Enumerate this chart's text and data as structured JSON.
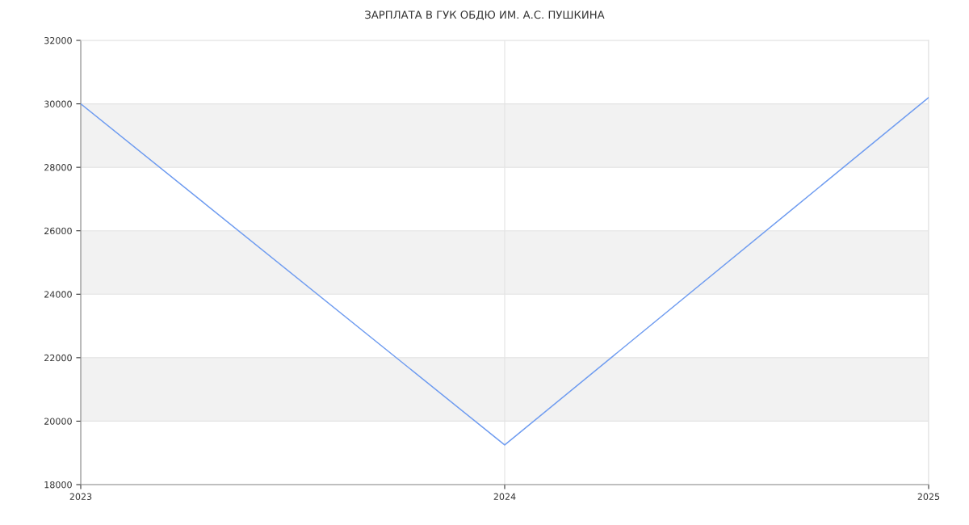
{
  "chart_data": {
    "type": "line",
    "title": "ЗАРПЛАТА В ГУК ОБДЮ ИМ. А.С. ПУШКИНА",
    "x": [
      2023,
      2024,
      2025
    ],
    "series": [
      {
        "color": "#6f9cf0",
        "values": [
          30000,
          19250,
          30200
        ]
      }
    ],
    "xlim": [
      2023,
      2025
    ],
    "xticks": [
      2023,
      2024,
      2025
    ],
    "ylim": [
      18000,
      32000
    ],
    "yticks": [
      18000,
      20000,
      22000,
      24000,
      26000,
      28000,
      30000,
      32000
    ],
    "bands": [
      {
        "axis": "y",
        "from": 20000,
        "to": 22000,
        "color": "#f2f2f2"
      },
      {
        "axis": "y",
        "from": 24000,
        "to": 26000,
        "color": "#f2f2f2"
      },
      {
        "axis": "y",
        "from": 28000,
        "to": 30000,
        "color": "#f2f2f2"
      }
    ],
    "grid": true,
    "marker": "none",
    "line_style": "solid",
    "legend": false
  }
}
